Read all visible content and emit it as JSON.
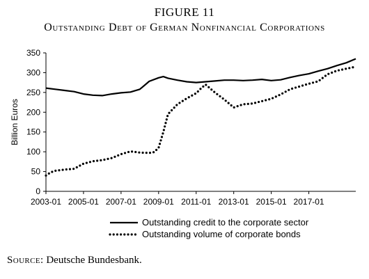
{
  "figure": {
    "label": "FIGURE 11",
    "title": "Outstanding Debt of German Nonfinancial Corporations"
  },
  "source": {
    "label": "Source:",
    "text": "Deutsche Bundesbank."
  },
  "chart_data": {
    "type": "line",
    "ylabel": "Billion Euros",
    "xlabel": "",
    "ylim": [
      0,
      350
    ],
    "xlim": [
      2003.0,
      2019.5
    ],
    "yticks": [
      0,
      50,
      100,
      150,
      200,
      250,
      300,
      350
    ],
    "xticks": [
      "2003-01",
      "2005-01",
      "2007-01",
      "2009-01",
      "2011-01",
      "2013-01",
      "2015-01",
      "2017-01"
    ],
    "grid": false,
    "legend_position": "bottom",
    "series": [
      {
        "name": "Outstanding credit to the corporate sector",
        "style": "solid",
        "color": "#000000",
        "points": [
          [
            "2003-01",
            261
          ],
          [
            "2003-07",
            258
          ],
          [
            "2004-01",
            255
          ],
          [
            "2004-07",
            252
          ],
          [
            "2005-01",
            246
          ],
          [
            "2005-07",
            243
          ],
          [
            "2006-01",
            242
          ],
          [
            "2006-07",
            246
          ],
          [
            "2007-01",
            249
          ],
          [
            "2007-07",
            251
          ],
          [
            "2008-01",
            258
          ],
          [
            "2008-04",
            268
          ],
          [
            "2008-07",
            278
          ],
          [
            "2009-01",
            287
          ],
          [
            "2009-04",
            290
          ],
          [
            "2009-07",
            286
          ],
          [
            "2010-01",
            281
          ],
          [
            "2010-07",
            277
          ],
          [
            "2011-01",
            275
          ],
          [
            "2011-07",
            277
          ],
          [
            "2012-01",
            279
          ],
          [
            "2012-07",
            281
          ],
          [
            "2013-01",
            281
          ],
          [
            "2013-07",
            280
          ],
          [
            "2014-01",
            281
          ],
          [
            "2014-07",
            283
          ],
          [
            "2015-01",
            280
          ],
          [
            "2015-07",
            282
          ],
          [
            "2016-01",
            288
          ],
          [
            "2016-07",
            293
          ],
          [
            "2017-01",
            297
          ],
          [
            "2017-07",
            304
          ],
          [
            "2018-01",
            310
          ],
          [
            "2018-07",
            318
          ],
          [
            "2019-01",
            325
          ],
          [
            "2019-07",
            335
          ]
        ]
      },
      {
        "name": "Outstanding volume of corporate bonds",
        "style": "dotted",
        "color": "#000000",
        "points": [
          [
            "2003-01",
            40
          ],
          [
            "2003-04",
            48
          ],
          [
            "2003-07",
            52
          ],
          [
            "2004-01",
            55
          ],
          [
            "2004-07",
            57
          ],
          [
            "2005-01",
            70
          ],
          [
            "2005-07",
            76
          ],
          [
            "2006-01",
            79
          ],
          [
            "2006-07",
            84
          ],
          [
            "2007-01",
            94
          ],
          [
            "2007-07",
            101
          ],
          [
            "2008-01",
            98
          ],
          [
            "2008-07",
            97
          ],
          [
            "2008-10",
            99
          ],
          [
            "2009-01",
            110
          ],
          [
            "2009-04",
            150
          ],
          [
            "2009-07",
            195
          ],
          [
            "2010-01",
            220
          ],
          [
            "2010-07",
            235
          ],
          [
            "2011-01",
            248
          ],
          [
            "2011-04",
            260
          ],
          [
            "2011-07",
            270
          ],
          [
            "2012-01",
            250
          ],
          [
            "2012-07",
            232
          ],
          [
            "2013-01",
            212
          ],
          [
            "2013-07",
            220
          ],
          [
            "2014-01",
            222
          ],
          [
            "2014-07",
            228
          ],
          [
            "2015-01",
            234
          ],
          [
            "2015-07",
            245
          ],
          [
            "2016-01",
            258
          ],
          [
            "2016-07",
            265
          ],
          [
            "2017-01",
            272
          ],
          [
            "2017-07",
            278
          ],
          [
            "2018-01",
            296
          ],
          [
            "2018-07",
            305
          ],
          [
            "2019-01",
            310
          ],
          [
            "2019-07",
            315
          ]
        ]
      }
    ]
  }
}
